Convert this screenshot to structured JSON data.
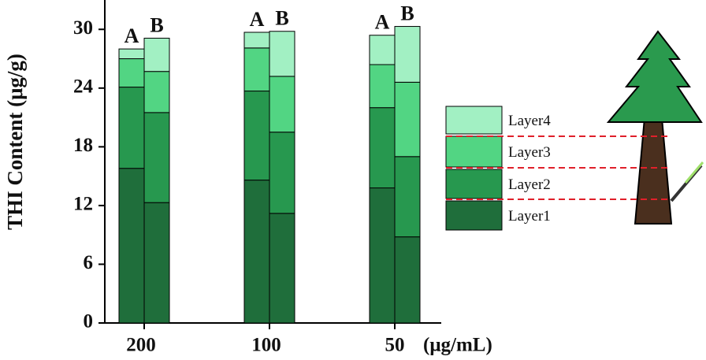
{
  "chart_data": {
    "type": "stacked-grouped-bar",
    "y_label": "THI Content (μg/g)",
    "x_unit": "(μg/mL)",
    "categories": [
      "200",
      "100",
      "50"
    ],
    "stacks": [
      "A",
      "B"
    ],
    "series": [
      {
        "name": "Layer1",
        "color": "#1f6e3b",
        "values": [
          [
            15.8,
            12.3
          ],
          [
            14.6,
            11.2
          ],
          [
            13.8,
            8.8
          ]
        ]
      },
      {
        "name": "Layer2",
        "color": "#27984f",
        "values": [
          [
            8.3,
            9.2
          ],
          [
            9.1,
            8.3
          ],
          [
            8.2,
            8.2
          ]
        ]
      },
      {
        "name": "Layer3",
        "color": "#52d583",
        "values": [
          [
            2.9,
            4.2
          ],
          [
            4.4,
            5.7
          ],
          [
            4.4,
            7.6
          ]
        ]
      },
      {
        "name": "Layer4",
        "color": "#a2f0c3",
        "values": [
          [
            1.0,
            3.4
          ],
          [
            1.6,
            4.6
          ],
          [
            3.0,
            5.7
          ]
        ]
      }
    ],
    "ylim": [
      0,
      33
    ],
    "yticks": [
      0,
      6,
      12,
      18,
      24,
      30
    ]
  }
}
